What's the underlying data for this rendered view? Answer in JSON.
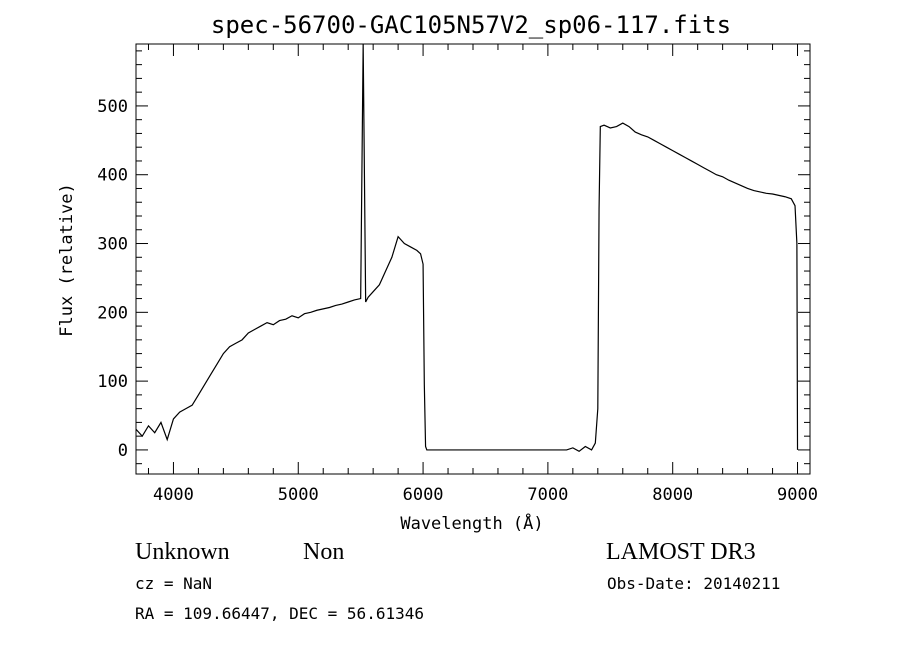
{
  "chart_data": {
    "type": "line",
    "title": "spec-56700-GAC105N57V2_sp06-117.fits",
    "xlabel": "Wavelength (Å)",
    "ylabel": "Flux (relative)",
    "xlim": [
      3700,
      9100
    ],
    "ylim": [
      -35,
      590
    ],
    "xticks": [
      4000,
      5000,
      6000,
      7000,
      8000,
      9000
    ],
    "yticks": [
      0,
      100,
      200,
      300,
      400,
      500
    ],
    "grid": false,
    "series": [
      {
        "color": "#000000",
        "x": [
          3700,
          3750,
          3800,
          3850,
          3900,
          3950,
          4000,
          4050,
          4100,
          4150,
          4200,
          4250,
          4300,
          4350,
          4400,
          4450,
          4500,
          4550,
          4600,
          4650,
          4700,
          4750,
          4800,
          4850,
          4900,
          4950,
          5000,
          5050,
          5100,
          5150,
          5200,
          5250,
          5300,
          5350,
          5400,
          5450,
          5500,
          5520,
          5540,
          5560,
          5600,
          5650,
          5700,
          5750,
          5800,
          5850,
          5900,
          5950,
          5980,
          6000,
          6010,
          6020,
          6030,
          7150,
          7200,
          7250,
          7300,
          7350,
          7380,
          7400,
          7410,
          7420,
          7450,
          7500,
          7550,
          7600,
          7650,
          7700,
          7750,
          7800,
          7850,
          7900,
          7950,
          8000,
          8050,
          8100,
          8150,
          8200,
          8250,
          8300,
          8350,
          8400,
          8450,
          8500,
          8550,
          8600,
          8650,
          8700,
          8750,
          8800,
          8850,
          8900,
          8950,
          8980,
          8995,
          9000
        ],
        "y": [
          30,
          20,
          35,
          25,
          40,
          15,
          45,
          55,
          60,
          65,
          80,
          95,
          110,
          125,
          140,
          150,
          155,
          160,
          170,
          175,
          180,
          185,
          182,
          188,
          190,
          195,
          192,
          198,
          200,
          203,
          205,
          207,
          210,
          212,
          215,
          218,
          220,
          590,
          215,
          222,
          230,
          240,
          260,
          280,
          310,
          300,
          295,
          290,
          285,
          270,
          95,
          5,
          0,
          0,
          3,
          -2,
          5,
          0,
          10,
          60,
          350,
          470,
          472,
          468,
          470,
          475,
          470,
          462,
          458,
          455,
          450,
          445,
          440,
          435,
          430,
          425,
          420,
          415,
          410,
          405,
          400,
          397,
          392,
          388,
          384,
          380,
          377,
          375,
          373,
          372,
          370,
          368,
          365,
          355,
          300,
          0
        ]
      }
    ]
  },
  "footer": {
    "object_class": "Unknown",
    "object_subclass": "Non",
    "survey": "LAMOST DR3",
    "redshift": "cz = NaN",
    "obs_date": "Obs-Date: 20140211",
    "coords": "RA = 109.66447, DEC =  56.61346"
  }
}
